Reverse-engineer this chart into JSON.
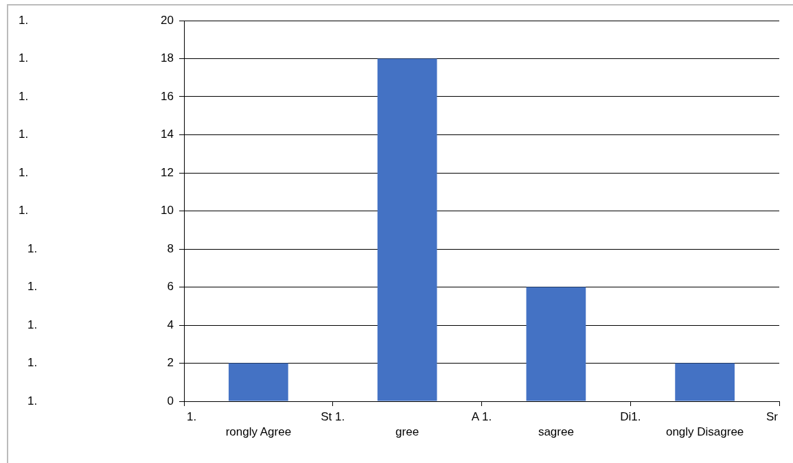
{
  "chart_data": {
    "type": "bar",
    "categories": [
      "rongly Agree",
      "gree",
      "sagree",
      "ongly Disagree"
    ],
    "values": [
      2,
      18,
      6,
      2
    ],
    "color": "#4472c4",
    "ylim": [
      0,
      20
    ],
    "yticks": [
      0,
      2,
      4,
      6,
      8,
      10,
      12,
      14,
      16,
      18,
      20
    ],
    "grid": "y",
    "annotations": [
      "1.",
      "1.",
      "1.",
      "1.",
      "1.",
      "1.",
      "1.",
      "1.",
      "1.",
      "1.",
      "1.",
      "1.",
      "St 1.",
      "A 1.",
      "Di1.",
      "Sr"
    ]
  }
}
